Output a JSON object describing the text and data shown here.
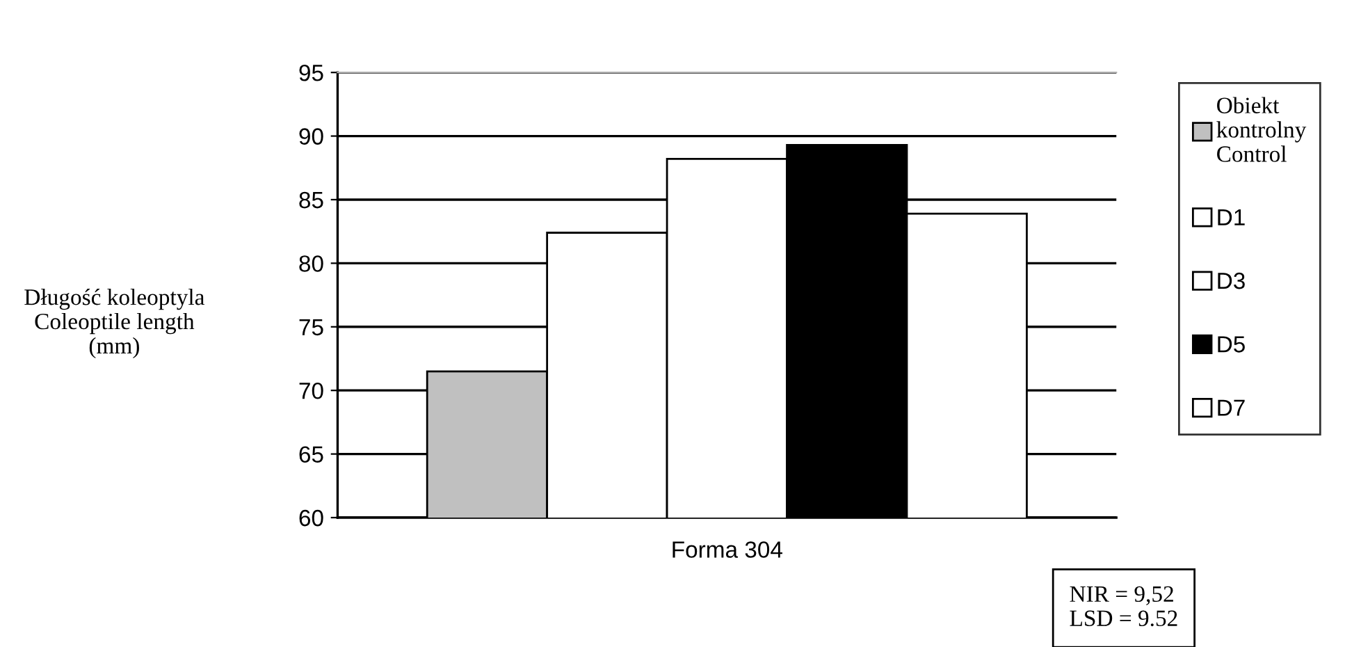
{
  "chart_data": {
    "type": "bar",
    "ylabel": "Długość koleoptyla\nColeoptile length\n(mm)",
    "categories": [
      "Forma 304"
    ],
    "series": [
      {
        "name": "Obiekt\nkontrolny\nControl",
        "color": "#c0c0c0",
        "values": [
          71.5
        ]
      },
      {
        "name": "D1",
        "color": "#ffffff",
        "values": [
          82.4
        ]
      },
      {
        "name": "D3",
        "color": "#ffffff",
        "values": [
          88.2
        ]
      },
      {
        "name": "D5",
        "color": "#000000",
        "values": [
          89.3
        ]
      },
      {
        "name": "D7",
        "color": "#ffffff",
        "values": [
          83.9
        ]
      }
    ],
    "ylim": [
      60,
      95
    ],
    "yticks": [
      60,
      65,
      70,
      75,
      80,
      85,
      90,
      95
    ],
    "grid": "y",
    "legend": "right",
    "annotations": [
      "NIR = 9,52\nLSD = 9.52"
    ]
  }
}
